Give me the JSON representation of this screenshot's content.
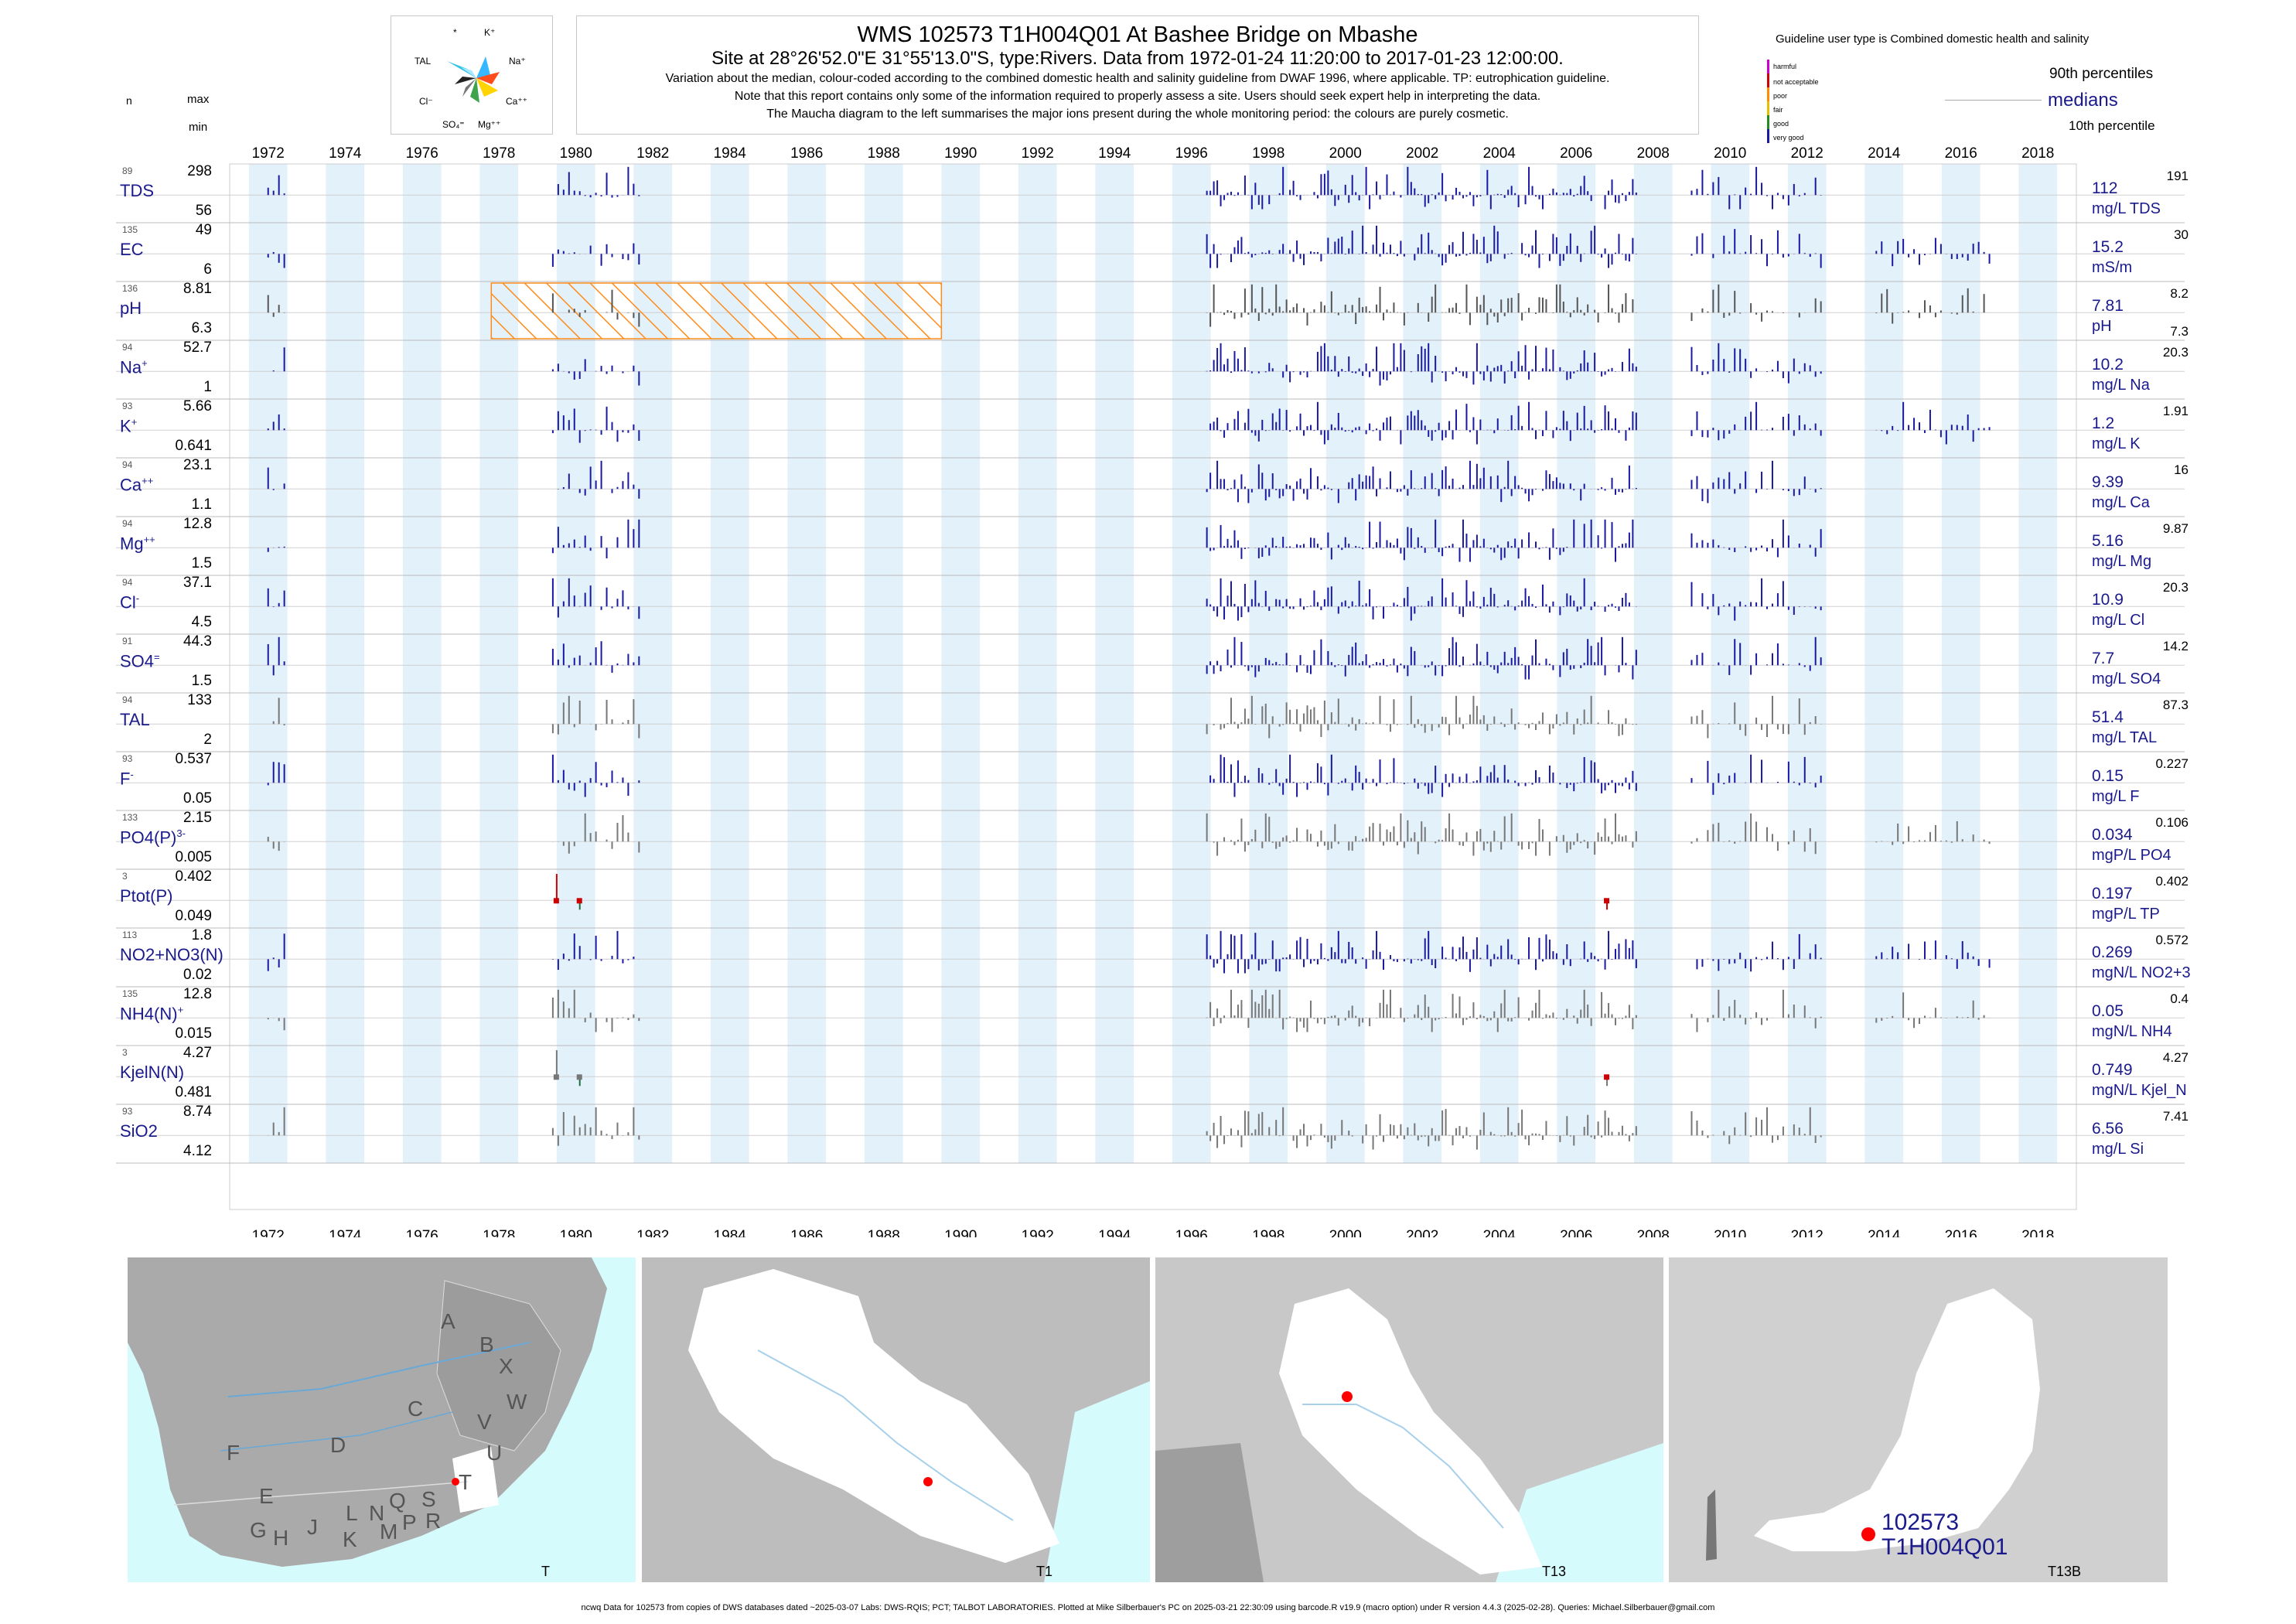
{
  "header": {
    "title": "WMS 102573 T1H004Q01 At Bashee Bridge on Mbashe",
    "subtitle": "Site at 28°26'52.0\"E 31°55'13.0\"S, type:Rivers.  Data from 1972-01-24 11:20:00 to 2017-01-23 12:00:00.",
    "note1": "Variation about the median,  colour-coded according to the combined domestic health and salinity guideline from DWAF 1996, where applicable. TP: eutrophication guideline.",
    "note2": "Note that this report contains only some of the information required to properly assess a site. Users should seek expert help in interpreting the data.",
    "note3": "The Maucha diagram to the left summarises the major ions present during the whole monitoring period: the colours are purely cosmetic."
  },
  "left_header": {
    "n": "n",
    "max": "max",
    "min": "min"
  },
  "maucha": {
    "labels": [
      "*",
      "K⁺",
      "TAL",
      "Na⁺",
      "Cl⁻",
      "Ca⁺⁺",
      "SO₄⁼",
      "Mg⁺⁺"
    ]
  },
  "legend": {
    "guideline": "Guideline user type is Combined domestic health and salinity",
    "categories": [
      "harmful",
      "not acceptable",
      "poor",
      "fair",
      "good",
      "very good"
    ],
    "colors": [
      "#cc00cc",
      "#cc0000",
      "#ff8c00",
      "#e6c000",
      "#228b22",
      "#1a1aa0"
    ],
    "p90": "90th percentiles",
    "medians": "medians",
    "p10": "10th percentile"
  },
  "chart_data": {
    "type": "bar",
    "title": "WMS 102573 T1H004Q01 At Bashee Bridge on Mbashe",
    "x_range": [
      1971,
      2019
    ],
    "x_ticks": [
      "1972",
      "1974",
      "1976",
      "1978",
      "1980",
      "1982",
      "1984",
      "1986",
      "1988",
      "1990",
      "1992",
      "1994",
      "1996",
      "1998",
      "2000",
      "2002",
      "2004",
      "2006",
      "2008",
      "2010",
      "2012",
      "2014",
      "2016",
      "2018"
    ],
    "variables": [
      {
        "label": "TDS",
        "sup": "",
        "n": "89",
        "max": "298",
        "min": "56",
        "median": "112",
        "p90": "191",
        "p10": "",
        "unit": "mg/L TDS",
        "color": "#1a1aa0"
      },
      {
        "label": "EC",
        "sup": "",
        "n": "135",
        "max": "49",
        "min": "6",
        "median": "15.2",
        "p90": "30",
        "p10": "",
        "unit": "mS/m",
        "color": "#1a1aa0"
      },
      {
        "label": "pH",
        "sup": "",
        "n": "136",
        "max": "8.81",
        "min": "6.3",
        "median": "7.81",
        "p90": "8.2",
        "p10": "7.3",
        "unit": "pH",
        "color": "#555555"
      },
      {
        "label": "Na",
        "sup": "+",
        "n": "94",
        "max": "52.7",
        "min": "1",
        "median": "10.2",
        "p90": "20.3",
        "p10": "",
        "unit": "mg/L Na",
        "color": "#1a1aa0"
      },
      {
        "label": "K",
        "sup": "+",
        "n": "93",
        "max": "5.66",
        "min": "0.641",
        "median": "1.2",
        "p90": "1.91",
        "p10": "",
        "unit": "mg/L K",
        "color": "#1a1aa0"
      },
      {
        "label": "Ca",
        "sup": "++",
        "n": "94",
        "max": "23.1",
        "min": "1.1",
        "median": "9.39",
        "p90": "16",
        "p10": "",
        "unit": "mg/L Ca",
        "color": "#1a1aa0"
      },
      {
        "label": "Mg",
        "sup": "++",
        "n": "94",
        "max": "12.8",
        "min": "1.5",
        "median": "5.16",
        "p90": "9.87",
        "p10": "",
        "unit": "mg/L Mg",
        "color": "#1a1aa0"
      },
      {
        "label": "Cl",
        "sup": "-",
        "n": "94",
        "max": "37.1",
        "min": "4.5",
        "median": "10.9",
        "p90": "20.3",
        "p10": "",
        "unit": "mg/L Cl",
        "color": "#1a1aa0"
      },
      {
        "label": "SO4",
        "sup": "=",
        "n": "91",
        "max": "44.3",
        "min": "1.5",
        "median": "7.7",
        "p90": "14.2",
        "p10": "",
        "unit": "mg/L SO4",
        "color": "#1a1aa0"
      },
      {
        "label": "TAL",
        "sup": "",
        "n": "94",
        "max": "133",
        "min": "2",
        "median": "51.4",
        "p90": "87.3",
        "p10": "",
        "unit": "mg/L TAL",
        "color": "#777777"
      },
      {
        "label": "F",
        "sup": "-",
        "n": "93",
        "max": "0.537",
        "min": "0.05",
        "median": "0.15",
        "p90": "0.227",
        "p10": "",
        "unit": "mg/L F",
        "color": "#1a1aa0"
      },
      {
        "label": "PO4(P)",
        "sup": "3-",
        "n": "133",
        "max": "2.15",
        "min": "0.005",
        "median": "0.034",
        "p90": "0.106",
        "p10": "",
        "unit": "mgP/L PO4",
        "color": "#777777"
      },
      {
        "label": "Ptot(P)",
        "sup": "",
        "n": "3",
        "max": "0.402",
        "min": "0.049",
        "median": "0.197",
        "p90": "0.402",
        "p10": "",
        "unit": "mgP/L TP",
        "color": "#cc0000"
      },
      {
        "label": "NO2+NO3(N)",
        "sup": "",
        "n": "113",
        "max": "1.8",
        "min": "0.02",
        "median": "0.269",
        "p90": "0.572",
        "p10": "",
        "unit": "mgN/L NO2+3",
        "color": "#1a1aa0"
      },
      {
        "label": "NH4(N)",
        "sup": "+",
        "n": "135",
        "max": "12.8",
        "min": "0.015",
        "median": "0.05",
        "p90": "0.4",
        "p10": "",
        "unit": "mgN/L NH4",
        "color": "#777777"
      },
      {
        "label": "KjelN(N)",
        "sup": "",
        "n": "3",
        "max": "4.27",
        "min": "0.481",
        "median": "0.749",
        "p90": "4.27",
        "p10": "",
        "unit": "mgN/L Kjel_N",
        "color": "#777777"
      },
      {
        "label": "SiO2",
        "sup": "",
        "n": "93",
        "max": "8.74",
        "min": "4.12",
        "median": "6.56",
        "p90": "7.41",
        "p10": "",
        "unit": "mg/L Si",
        "color": "#777777"
      }
    ],
    "sampling_periods": [
      [
        1972.0,
        1972.5
      ],
      [
        1979.4,
        1981.7
      ],
      [
        1996.4,
        2007.6
      ],
      [
        2009.0,
        2012.5
      ],
      [
        2013.8,
        2016.8
      ]
    ],
    "ph_hatch": [
      1977.8,
      1989.5
    ]
  },
  "maps": [
    {
      "caption": "T",
      "letters": [
        "A",
        "B",
        "X",
        "W",
        "C",
        "D",
        "V",
        "U",
        "F",
        "T",
        "E",
        "G",
        "H",
        "J",
        "L",
        "N",
        "Q",
        "S",
        "K",
        "M",
        "P",
        "R"
      ]
    },
    {
      "caption": "T1"
    },
    {
      "caption": "T13"
    },
    {
      "caption": "T13B",
      "site_id": "102573",
      "site_code": "T1H004Q01"
    }
  ],
  "footer": "ncwq Data for 102573 from copies of DWS databases dated ~2025-03-07 Labs: DWS-RQIS; PCT; TALBOT LABORATORIES. Plotted at Mike Silberbauer's PC on 2025-03-21 22:30:09 using barcode.R v19.9 (macro option) under R version 4.4.3 (2025-02-28). Queries: Michael.Silberbauer@gmail.com"
}
